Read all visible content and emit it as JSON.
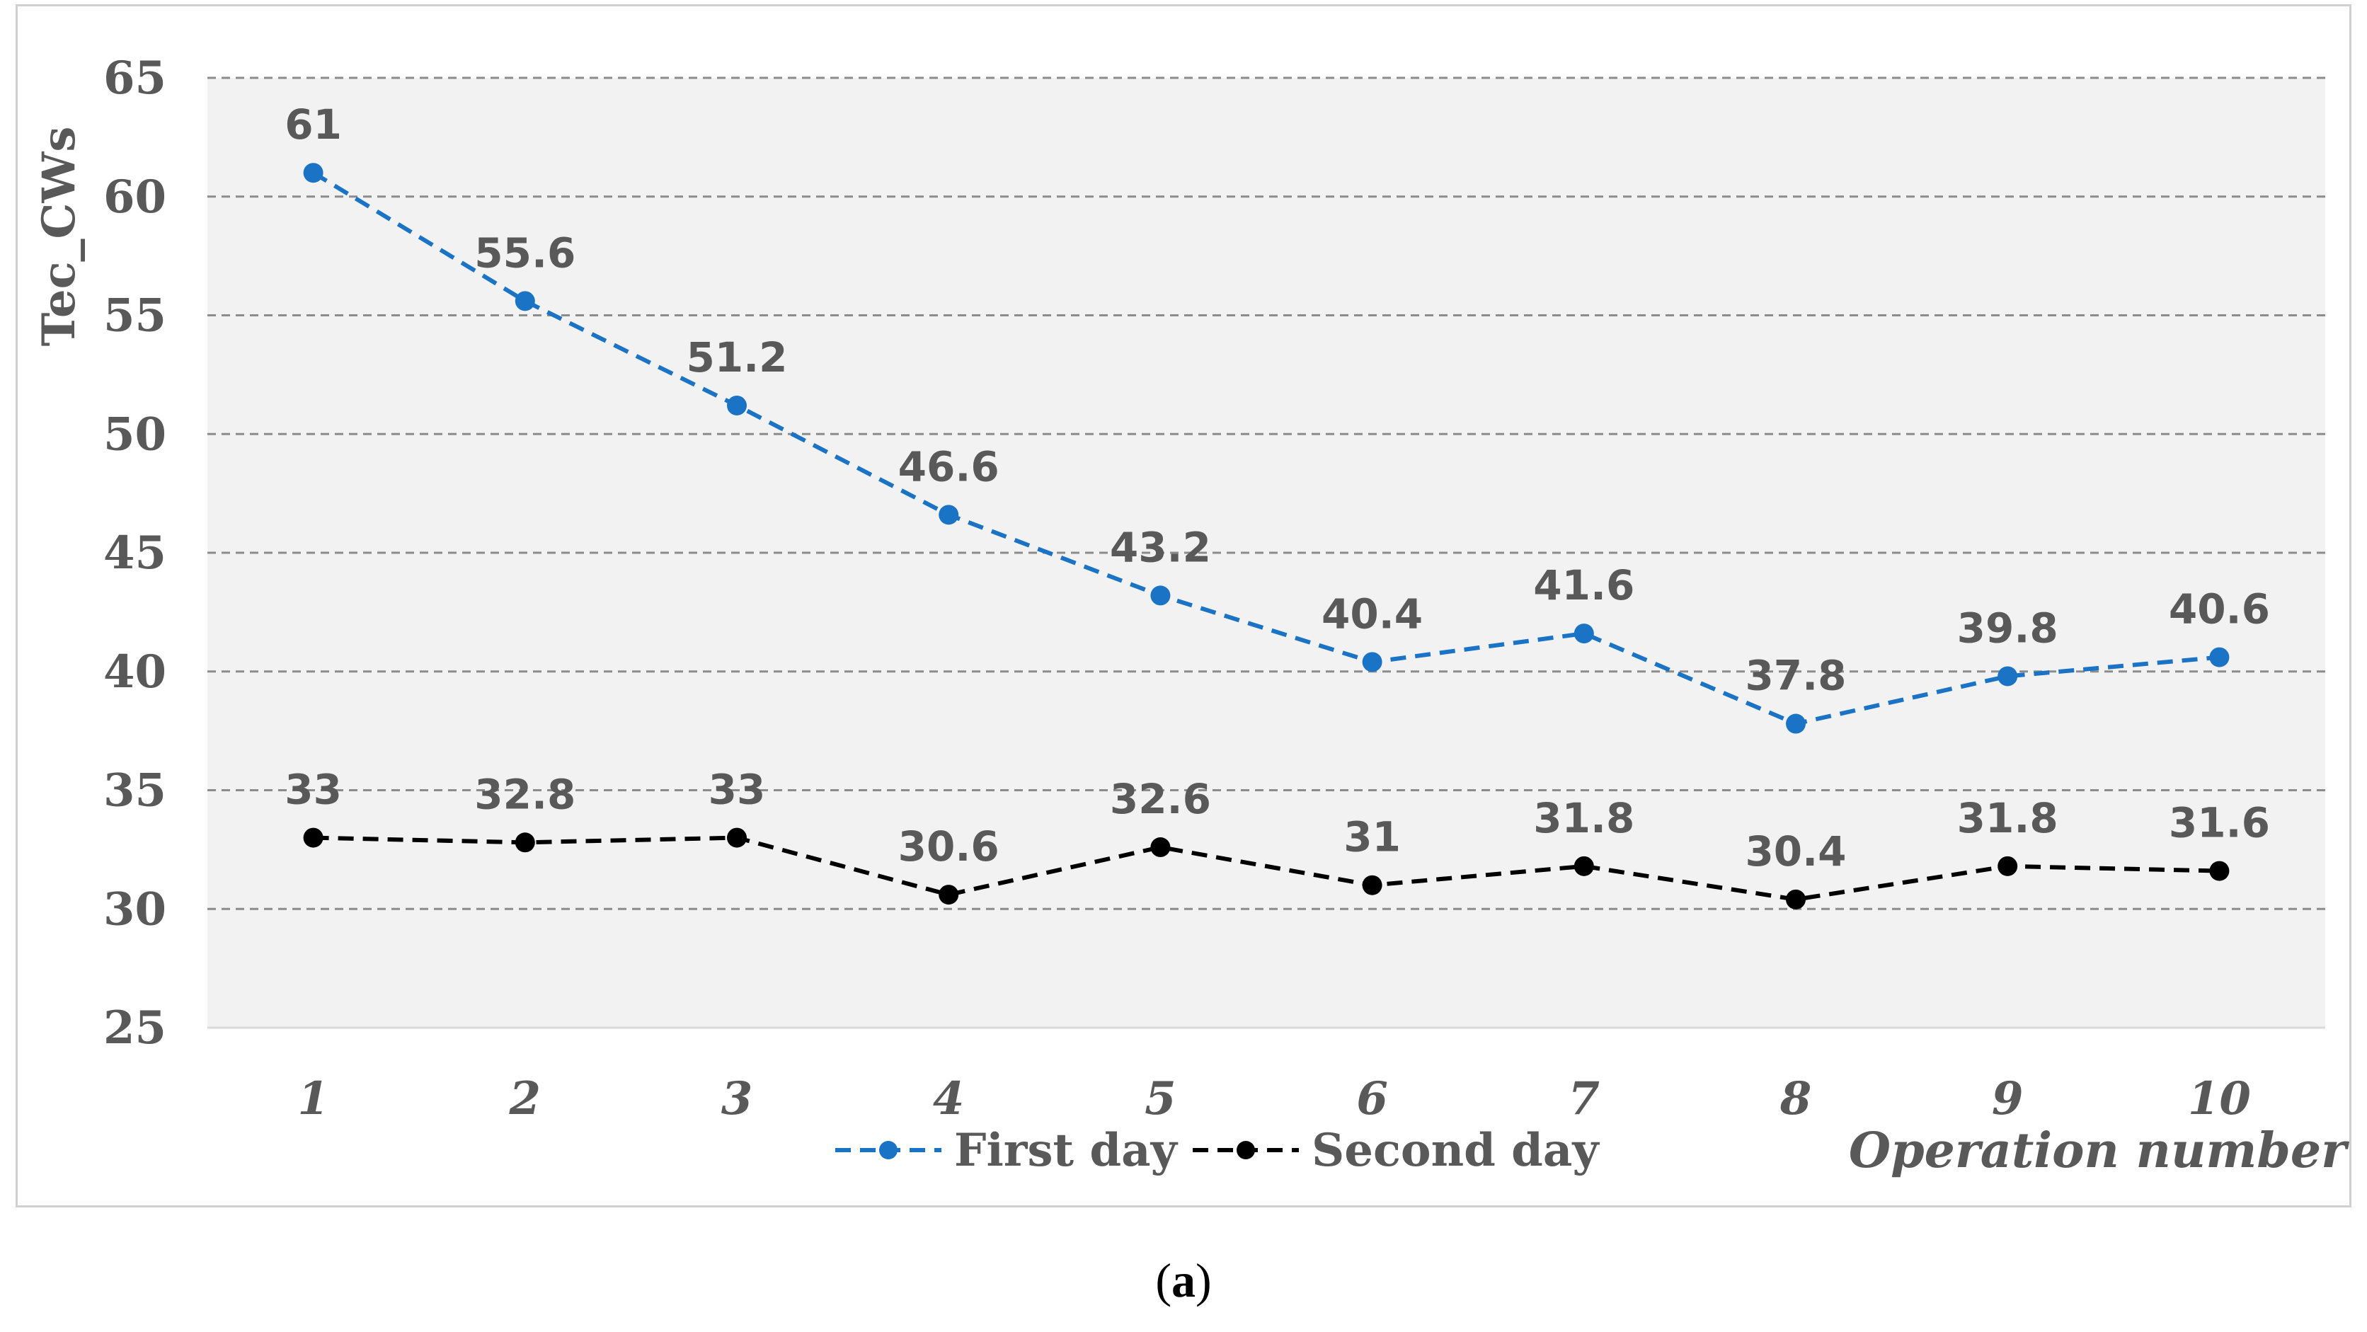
{
  "chart_data": {
    "type": "line",
    "title": "",
    "xlabel": "Operation number",
    "ylabel": "Tec_CWs",
    "ylim": [
      25,
      65
    ],
    "yticks": [
      25,
      30,
      35,
      40,
      45,
      50,
      55,
      60,
      65
    ],
    "categories": [
      "1",
      "2",
      "3",
      "4",
      "5",
      "6",
      "7",
      "8",
      "9",
      "10"
    ],
    "grid": "horizontal dashed",
    "legend": "bottom",
    "plot_background": "#f2f2f2",
    "series": [
      {
        "name": "First day",
        "color": "#1a73c4",
        "line_style": "dashed",
        "values": [
          61,
          55.6,
          51.2,
          46.6,
          43.2,
          40.4,
          41.6,
          37.8,
          39.8,
          40.6
        ],
        "labels": [
          "61",
          "55.6",
          "51.2",
          "46.6",
          "43.2",
          "40.4",
          "41.6",
          "37.8",
          "39.8",
          "40.6"
        ]
      },
      {
        "name": "Second day",
        "color": "#000000",
        "line_style": "dashed",
        "values": [
          33,
          32.8,
          33,
          30.6,
          32.6,
          31,
          31.8,
          30.4,
          31.8,
          31.6
        ],
        "labels": [
          "33",
          "32.8",
          "33",
          "30.6",
          "32.6",
          "31",
          "31.8",
          "30.4",
          "31.8",
          "31.6"
        ]
      }
    ]
  },
  "caption": {
    "open": "(",
    "letter": "a",
    "close": ")"
  }
}
